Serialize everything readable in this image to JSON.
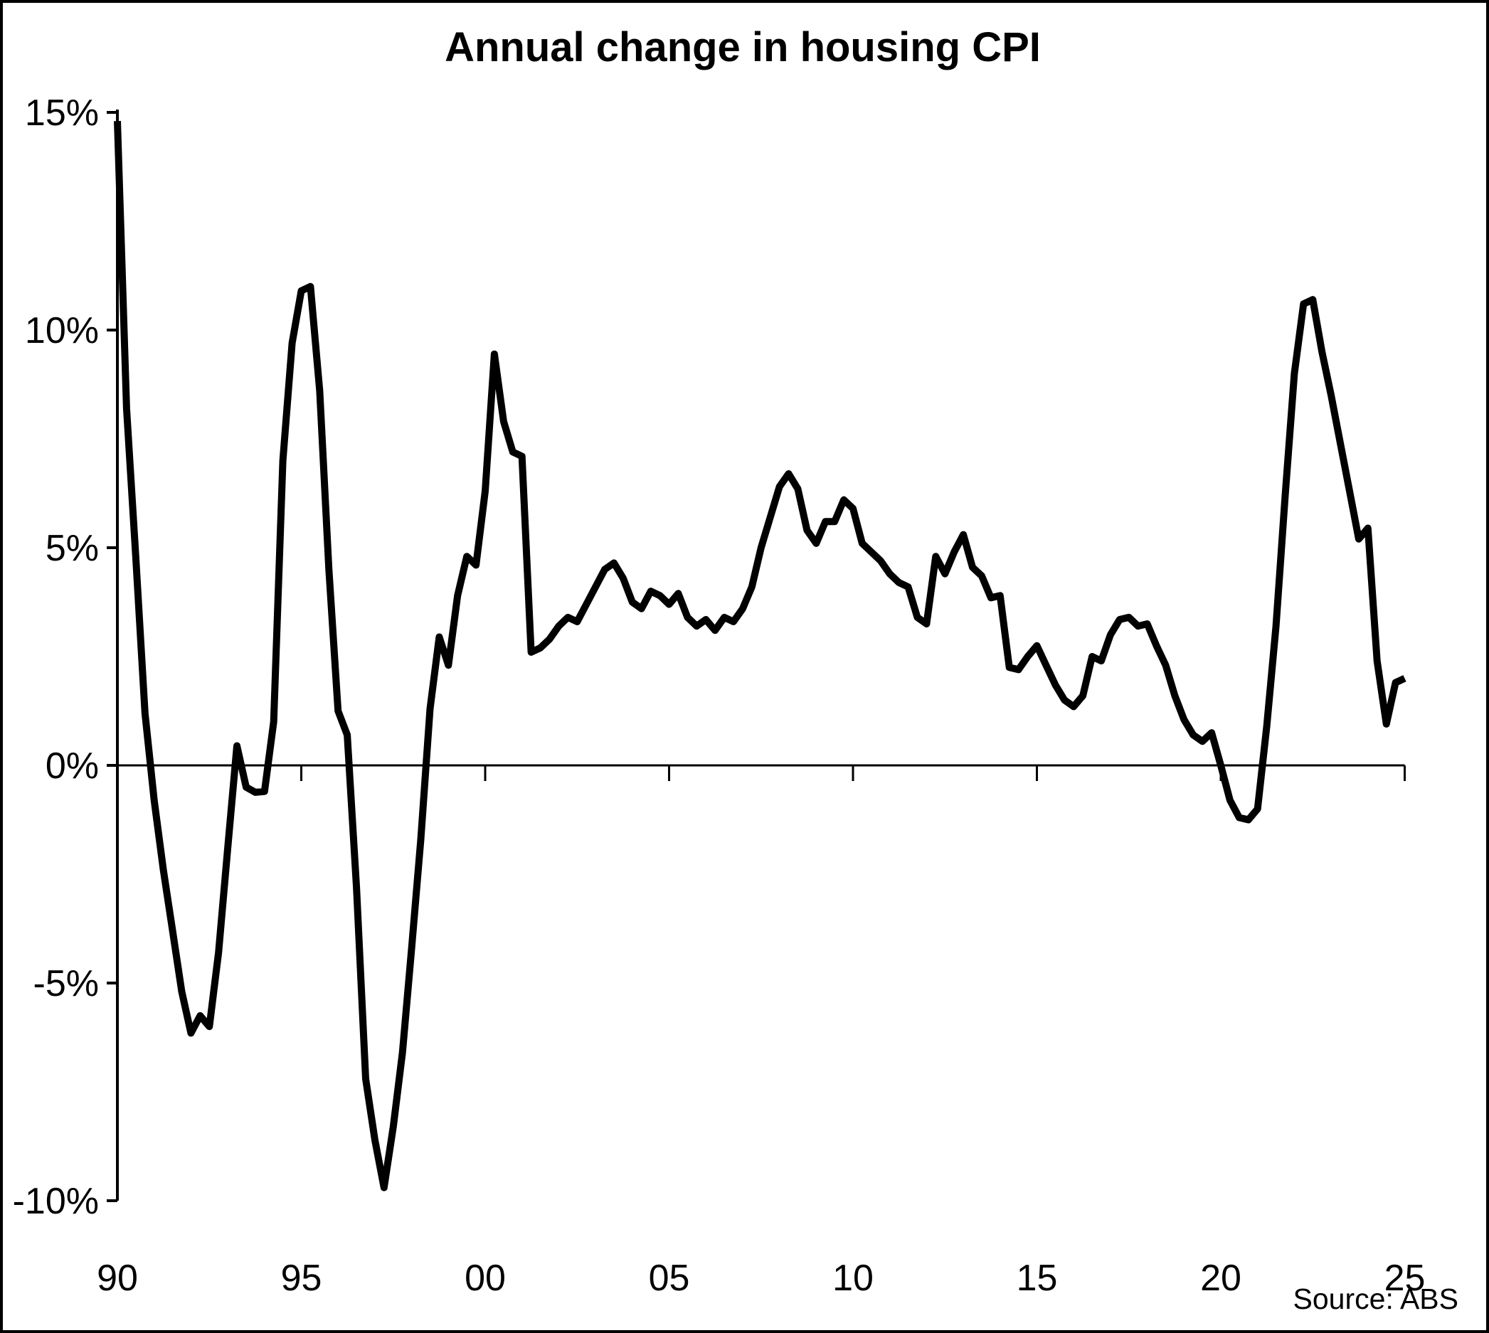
{
  "chart_data": {
    "type": "line",
    "title": "Annual change in housing CPI",
    "source": "Source: ABS",
    "line_color": "#000000",
    "background_color": "#ffffff",
    "frequency": "quarterly",
    "x_start_year": 1990,
    "x_end_year": 2025,
    "ylim": [
      -10,
      15
    ],
    "grid": "zero-line-only",
    "legend_position": "none",
    "y_ticks": [
      {
        "value": 15,
        "label": "15%"
      },
      {
        "value": 10,
        "label": "10%"
      },
      {
        "value": 5,
        "label": "5%"
      },
      {
        "value": 0,
        "label": "0%"
      },
      {
        "value": -5,
        "label": "-5%"
      },
      {
        "value": -10,
        "label": "-10%"
      }
    ],
    "x_ticks": [
      {
        "year": 1990,
        "label": "90"
      },
      {
        "year": 1995,
        "label": "95"
      },
      {
        "year": 2000,
        "label": "00"
      },
      {
        "year": 2005,
        "label": "05"
      },
      {
        "year": 2010,
        "label": "10"
      },
      {
        "year": 2015,
        "label": "15"
      },
      {
        "year": 2020,
        "label": "20"
      },
      {
        "year": 2025,
        "label": "25"
      }
    ],
    "series": [
      {
        "name": "Annual change in housing CPI (%)",
        "values": [
          14.8,
          8.2,
          4.8,
          1.2,
          -0.8,
          -2.4,
          -3.8,
          -5.2,
          -6.15,
          -5.75,
          -6.0,
          -4.3,
          -1.9,
          0.45,
          -0.5,
          -0.62,
          -0.6,
          1.0,
          7.0,
          9.7,
          10.9,
          11.0,
          8.6,
          4.5,
          1.25,
          0.7,
          -2.8,
          -7.2,
          -8.6,
          -9.7,
          -8.3,
          -6.6,
          -4.2,
          -1.7,
          1.3,
          2.95,
          2.3,
          3.9,
          4.8,
          4.6,
          6.3,
          9.45,
          7.9,
          7.2,
          7.1,
          2.6,
          2.7,
          2.9,
          3.2,
          3.4,
          3.3,
          3.7,
          4.1,
          4.5,
          4.65,
          4.3,
          3.75,
          3.6,
          4.0,
          3.9,
          3.7,
          3.95,
          3.4,
          3.2,
          3.35,
          3.1,
          3.4,
          3.3,
          3.6,
          4.1,
          5.0,
          5.7,
          6.4,
          6.7,
          6.35,
          5.4,
          5.1,
          5.6,
          5.6,
          6.1,
          5.9,
          5.1,
          4.9,
          4.7,
          4.4,
          4.2,
          4.1,
          3.4,
          3.25,
          4.8,
          4.4,
          4.9,
          5.3,
          4.55,
          4.35,
          3.85,
          3.9,
          2.25,
          2.2,
          2.5,
          2.75,
          2.3,
          1.85,
          1.5,
          1.35,
          1.6,
          2.5,
          2.4,
          3.0,
          3.35,
          3.4,
          3.2,
          3.25,
          2.75,
          2.3,
          1.6,
          1.05,
          0.7,
          0.55,
          0.75,
          0.0,
          -0.8,
          -1.2,
          -1.25,
          -1.0,
          0.9,
          3.2,
          6.2,
          9.0,
          10.6,
          10.7,
          9.5,
          8.5,
          7.4,
          6.3,
          5.2,
          5.45,
          2.4,
          0.95,
          1.9,
          2.0
        ]
      }
    ]
  }
}
